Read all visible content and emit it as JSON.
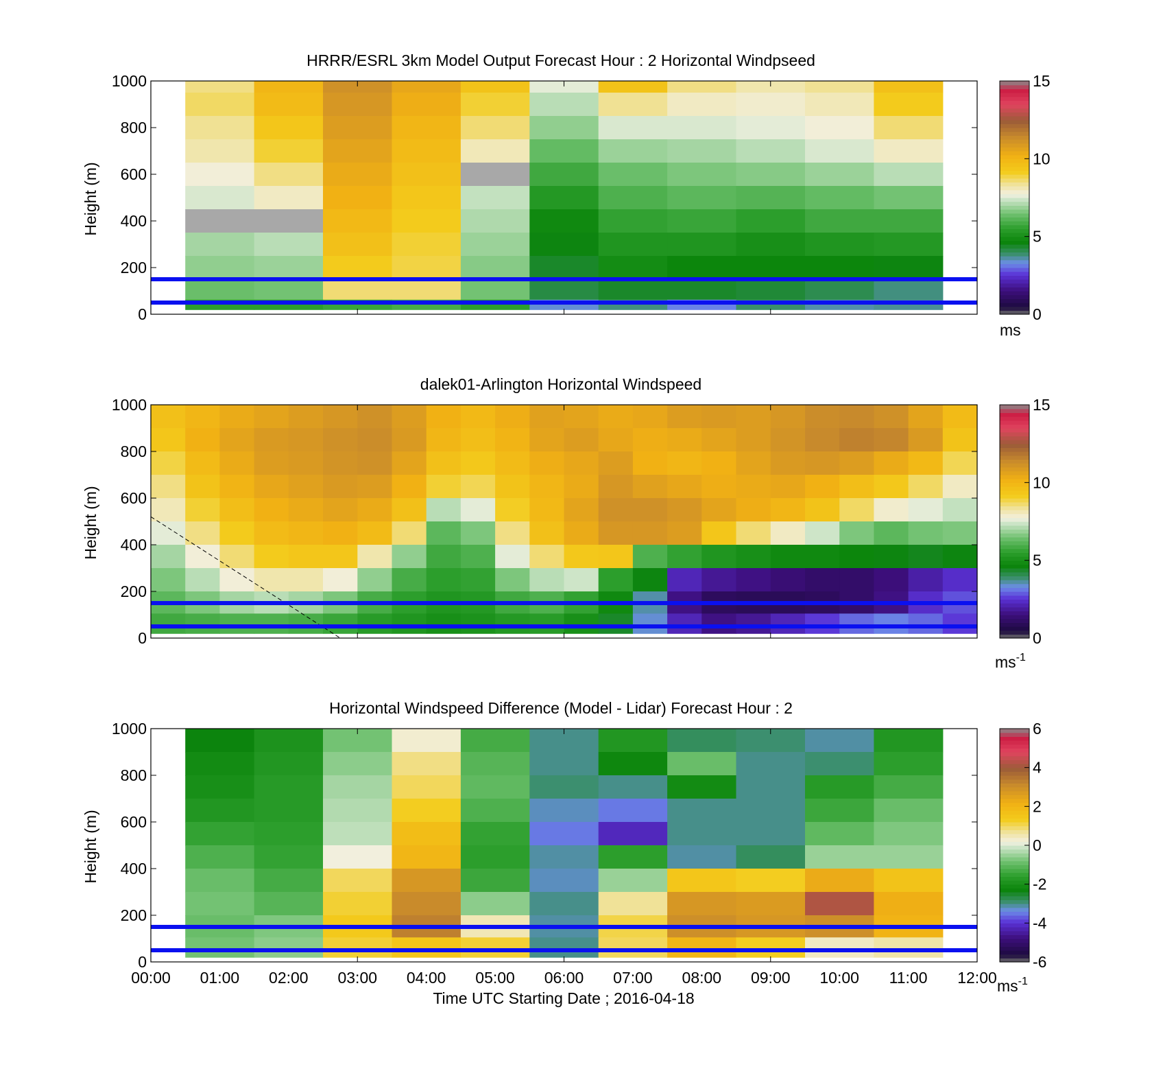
{
  "figure": {
    "xlabel": "Time UTC  Starting Date ; 2016-04-18",
    "x_ticks": [
      "00:00",
      "01:00",
      "02:00",
      "03:00",
      "04:00",
      "05:00",
      "06:00",
      "07:00",
      "08:00",
      "09:00",
      "10:00",
      "11:00",
      "12:00"
    ]
  },
  "chart_data": [
    {
      "type": "heatmap",
      "title": "HRRR/ESRL 3km Model Output   Forecast Hour : 2 Horizontal Windpseed",
      "ylabel": "Height (m)",
      "ylim": [
        0,
        1000
      ],
      "y_ticks": [
        "0",
        "200",
        "400",
        "600",
        "800",
        "1000"
      ],
      "xlim_hours": [
        0,
        12
      ],
      "colorbar": {
        "ticks": [
          "0",
          "5",
          "10",
          "15"
        ],
        "range": [
          0,
          15
        ],
        "unit": "ms",
        "unit_sup": ""
      },
      "reference_lines_m": [
        50,
        150
      ],
      "x_hours": [
        1,
        2,
        3,
        4,
        5,
        6,
        7,
        8,
        9,
        10,
        11
      ],
      "heights_m": [
        1000,
        900,
        800,
        700,
        600,
        500,
        400,
        300,
        200,
        100,
        25
      ],
      "values": [
        [
          8.5,
          10.0,
          11.2,
          10.5,
          9.5,
          7.6,
          9.5,
          8.5,
          8.2,
          8.4,
          9.6
        ],
        [
          8.7,
          9.8,
          11.0,
          10.3,
          9.0,
          7.2,
          8.4,
          8.0,
          7.9,
          8.1,
          9.2
        ],
        [
          8.4,
          9.4,
          10.8,
          10.0,
          8.6,
          6.8,
          7.5,
          7.5,
          7.6,
          7.8,
          8.6
        ],
        [
          8.2,
          9.0,
          10.6,
          9.8,
          8.1,
          6.3,
          6.9,
          7.0,
          7.2,
          7.5,
          8.0
        ],
        [
          7.8,
          8.5,
          10.4,
          9.6,
          null,
          5.8,
          6.4,
          6.6,
          6.7,
          6.9,
          7.2
        ],
        [
          7.5,
          8.0,
          10.2,
          9.4,
          7.3,
          5.3,
          6.0,
          6.2,
          6.1,
          6.3,
          6.5
        ],
        [
          null,
          null,
          9.9,
          9.2,
          7.1,
          4.8,
          5.6,
          5.7,
          5.5,
          5.8,
          5.8
        ],
        [
          7.0,
          7.2,
          9.6,
          9.0,
          6.9,
          4.6,
          5.2,
          5.2,
          5.0,
          5.2,
          5.3
        ],
        [
          6.8,
          6.9,
          9.2,
          8.9,
          6.7,
          4.4,
          4.9,
          4.7,
          4.7,
          4.7,
          4.6
        ],
        [
          6.4,
          6.5,
          8.6,
          8.6,
          6.5,
          4.2,
          4.4,
          4.4,
          4.3,
          4.1,
          3.8
        ],
        [
          5.5,
          5.5,
          5.7,
          5.9,
          5.5,
          3.4,
          3.8,
          3.2,
          3.9,
          3.6,
          3.7
        ]
      ]
    },
    {
      "type": "heatmap",
      "title": "dalek01-Arlington  Horizontal Windspeed",
      "ylabel": "Height (m)",
      "ylim": [
        0,
        1000
      ],
      "y_ticks": [
        "0",
        "200",
        "400",
        "600",
        "800",
        "1000"
      ],
      "xlim_hours": [
        0,
        12
      ],
      "colorbar": {
        "ticks": [
          "0",
          "5",
          "10",
          "15"
        ],
        "range": [
          0,
          15
        ],
        "unit": "ms",
        "unit_sup": "-1"
      },
      "reference_lines_m": [
        50,
        150
      ],
      "dashed_line": {
        "from": [
          0,
          520
        ],
        "to": [
          2.75,
          0
        ]
      },
      "x_hours": [
        0.25,
        0.75,
        1.25,
        1.75,
        2.25,
        2.75,
        3.25,
        3.75,
        4.25,
        4.75,
        5.25,
        5.75,
        6.25,
        6.75,
        7.25,
        7.75,
        8.25,
        8.75,
        9.25,
        9.75,
        10.25,
        10.75,
        11.25,
        11.75
      ],
      "heights_m": [
        950,
        850,
        750,
        650,
        550,
        450,
        350,
        250,
        150,
        60
      ],
      "values": [
        [
          9.6,
          10.0,
          10.4,
          10.6,
          10.8,
          11.0,
          11.2,
          10.8,
          10.2,
          9.9,
          10.3,
          10.7,
          10.6,
          10.4,
          10.5,
          10.8,
          10.9,
          10.8,
          11.0,
          11.3,
          11.4,
          11.2,
          10.6,
          9.8
        ],
        [
          9.4,
          10.2,
          10.6,
          10.9,
          11.0,
          11.2,
          11.3,
          10.9,
          10.0,
          9.7,
          10.1,
          10.6,
          10.8,
          10.5,
          10.3,
          10.4,
          10.6,
          10.8,
          11.1,
          11.4,
          11.6,
          11.5,
          10.9,
          9.5
        ],
        [
          8.9,
          9.8,
          10.4,
          10.8,
          10.9,
          11.1,
          11.2,
          10.6,
          9.6,
          9.3,
          9.8,
          10.3,
          10.5,
          10.8,
          10.2,
          10.0,
          10.2,
          10.6,
          10.9,
          11.0,
          10.8,
          10.4,
          9.9,
          8.8
        ],
        [
          8.5,
          9.5,
          10.1,
          10.5,
          10.7,
          10.9,
          10.8,
          10.2,
          9.0,
          8.8,
          9.5,
          10.0,
          10.4,
          11.0,
          10.7,
          10.5,
          10.3,
          10.4,
          10.5,
          10.2,
          9.7,
          9.3,
          8.7,
          8.0
        ],
        [
          8.1,
          9.0,
          9.7,
          10.2,
          10.4,
          10.6,
          10.4,
          9.6,
          7.2,
          7.6,
          9.1,
          9.9,
          10.6,
          11.2,
          11.2,
          11.0,
          10.6,
          10.3,
          10.0,
          9.5,
          8.7,
          7.9,
          7.6,
          7.3
        ],
        [
          7.6,
          8.5,
          9.2,
          9.8,
          10.0,
          10.2,
          9.8,
          8.6,
          6.2,
          6.6,
          8.5,
          9.6,
          10.4,
          11.0,
          11.0,
          10.8,
          9.4,
          8.6,
          8.0,
          7.4,
          6.6,
          6.2,
          6.5,
          6.6
        ],
        [
          7.0,
          7.8,
          8.6,
          9.2,
          9.4,
          9.4,
          8.2,
          6.8,
          5.8,
          6.0,
          7.6,
          8.6,
          9.3,
          9.4,
          6.0,
          5.6,
          5.2,
          5.0,
          4.8,
          4.8,
          4.7,
          4.6,
          4.5,
          4.6
        ],
        [
          6.6,
          7.2,
          7.8,
          8.2,
          8.2,
          7.8,
          6.8,
          5.9,
          5.5,
          5.6,
          6.6,
          7.2,
          7.4,
          5.5,
          4.6,
          2.2,
          1.8,
          1.6,
          1.4,
          1.2,
          1.2,
          1.5,
          2.0,
          2.4
        ],
        [
          6.2,
          6.6,
          7.0,
          7.2,
          7.0,
          6.6,
          5.9,
          5.5,
          5.2,
          5.3,
          5.8,
          6.0,
          5.6,
          4.8,
          3.6,
          1.6,
          1.0,
          0.9,
          0.9,
          1.0,
          1.2,
          1.6,
          2.4,
          2.8
        ],
        [
          5.8,
          5.9,
          6.0,
          6.0,
          5.9,
          5.7,
          5.4,
          5.2,
          5.0,
          5.1,
          5.3,
          5.4,
          5.0,
          4.4,
          3.4,
          2.2,
          1.6,
          1.8,
          2.2,
          2.6,
          3.0,
          3.2,
          3.0,
          2.6
        ]
      ]
    },
    {
      "type": "heatmap",
      "title": "Horizontal Windspeed Difference (Model - Lidar) Forecast Hour : 2",
      "ylabel": "Height (m)",
      "ylim": [
        0,
        1000
      ],
      "y_ticks": [
        "0",
        "200",
        "400",
        "600",
        "800",
        "1000"
      ],
      "xlim_hours": [
        0,
        12
      ],
      "colorbar": {
        "ticks": [
          "-6",
          "-4",
          "-2",
          "0",
          "2",
          "4",
          "6"
        ],
        "range": [
          -6,
          6
        ],
        "unit": "ms",
        "unit_sup": "-1"
      },
      "reference_lines_m": [
        50,
        150
      ],
      "x_hours": [
        1,
        2,
        3,
        4,
        5,
        6,
        7,
        8,
        9,
        10,
        11
      ],
      "heights_m": [
        950,
        850,
        750,
        650,
        550,
        450,
        350,
        250,
        150,
        60
      ],
      "values": [
        [
          -2.3,
          -1.9,
          -0.8,
          0.3,
          -1.3,
          -3.0,
          -1.8,
          -2.8,
          -2.9,
          -3.1,
          -1.8
        ],
        [
          -2.1,
          -1.8,
          -0.6,
          0.8,
          -1.1,
          -3.0,
          -2.2,
          -0.9,
          -3.0,
          -2.9,
          -1.6
        ],
        [
          -2.0,
          -1.7,
          -0.4,
          1.0,
          -1.0,
          -2.9,
          -3.0,
          -2.1,
          -3.0,
          -1.7,
          -1.3
        ],
        [
          -1.8,
          -1.7,
          -0.3,
          1.3,
          -1.2,
          -3.2,
          -3.5,
          -3.0,
          -3.0,
          -1.4,
          -0.9
        ],
        [
          -1.5,
          -1.6,
          -0.2,
          1.8,
          -1.5,
          -3.5,
          -4.2,
          -3.0,
          -3.0,
          -1.0,
          -0.7
        ],
        [
          -1.2,
          -1.5,
          0.2,
          2.0,
          -1.6,
          -3.1,
          -1.6,
          -3.1,
          -2.8,
          -0.5,
          -0.5
        ],
        [
          -0.9,
          -1.3,
          1.0,
          2.8,
          -1.4,
          -3.2,
          -0.5,
          1.5,
          1.3,
          2.3,
          1.6
        ],
        [
          -0.8,
          -1.1,
          1.2,
          3.1,
          -0.6,
          -3.0,
          0.7,
          2.8,
          2.7,
          4.2,
          2.2
        ],
        [
          -0.9,
          -0.7,
          1.4,
          3.3,
          0.5,
          -3.1,
          1.1,
          3.0,
          2.8,
          3.0,
          2.1
        ],
        [
          -0.8,
          -0.6,
          1.2,
          1.5,
          1.2,
          -3.0,
          1.0,
          2.0,
          1.3,
          0.4,
          0.6
        ]
      ]
    }
  ]
}
